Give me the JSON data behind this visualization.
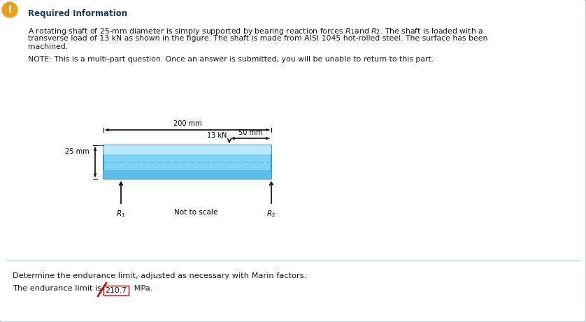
{
  "bg_color": "#ffffff",
  "border_color": "#a8bfd0",
  "title": "Required Information",
  "line1": "A rotating shaft of 25-mm diameter is simply supported by bearing reaction forces $R_1$and $R_2$. The shaft is loaded with a",
  "line2": "transverse load of 13 kN as shown in the figure. The shaft is made from AISI 1045 hot-rolled steel. The surface has been",
  "line3": "machined.",
  "note": "NOTE: This is a multi-part question. Once an answer is submitted, you will be unable to return to this part.",
  "dim_200mm": "200 mm",
  "dim_50mm": "50 mm",
  "dim_25mm": "25 mm",
  "load_label": "13 kN",
  "not_to_scale": "Not to scale",
  "footer1": "Determine the endurance limit, adjusted as necessary with Marin factors.",
  "footer2_pre": "The endurance limit is",
  "footer2_value": "210.7",
  "footer2_post": "MPa.",
  "shaft_color_top": "#b8e8fa",
  "shaft_color_mid": "#7dd4f5",
  "shaft_color_bot": "#5bbde8",
  "shaft_border": "#2080b8",
  "shaft_centerline": "#60b8e0"
}
